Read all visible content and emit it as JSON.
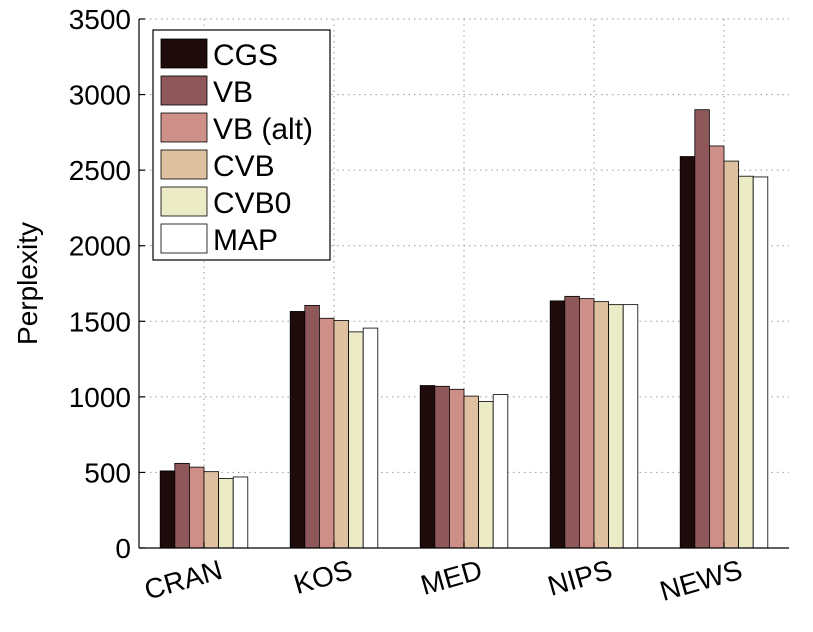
{
  "chart_data": {
    "type": "bar",
    "title": "",
    "xlabel": "",
    "ylabel": "Perplexity",
    "ylim": [
      0,
      3500
    ],
    "yticks": [
      0,
      500,
      1000,
      1500,
      2000,
      2500,
      3000,
      3500
    ],
    "grid": true,
    "legend_position": "top-left",
    "categories": [
      "CRAN",
      "KOS",
      "MED",
      "NIPS",
      "NEWS"
    ],
    "series": [
      {
        "name": "CGS",
        "color": "#1f0a0c",
        "values": [
          510,
          1565,
          1075,
          1635,
          2590
        ]
      },
      {
        "name": "VB",
        "color": "#8e575a",
        "values": [
          560,
          1605,
          1070,
          1665,
          2900
        ]
      },
      {
        "name": "VB (alt)",
        "color": "#cf8f89",
        "values": [
          535,
          1520,
          1050,
          1650,
          2660
        ]
      },
      {
        "name": "CVB",
        "color": "#dfc1a1",
        "values": [
          505,
          1505,
          1005,
          1630,
          2560
        ]
      },
      {
        "name": "CVB0",
        "color": "#ebebc6",
        "values": [
          460,
          1430,
          970,
          1610,
          2460
        ]
      },
      {
        "name": "MAP",
        "color": "#ffffff",
        "values": [
          470,
          1455,
          1015,
          1610,
          2455
        ]
      }
    ]
  }
}
